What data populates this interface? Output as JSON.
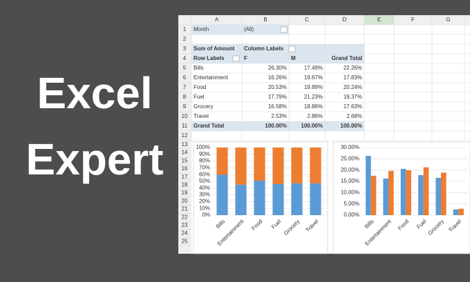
{
  "headline": [
    "Excel",
    "Expert"
  ],
  "sheet": {
    "columns": [
      "A",
      "B",
      "C",
      "D",
      "E",
      "F",
      "G"
    ],
    "row_numbers": [
      1,
      2,
      3,
      4,
      5,
      6,
      7,
      8,
      9,
      10,
      11,
      12,
      13,
      14,
      15,
      16,
      17,
      18,
      19,
      20,
      21,
      22,
      23,
      24,
      25
    ],
    "filter": {
      "label": "Month",
      "value": "(All)"
    },
    "pivot": {
      "value_label": "Sum of Amount",
      "column_labels": "Column Labels",
      "row_labels": "Row Labels",
      "headers": [
        "F",
        "M",
        "Grand Total"
      ],
      "rows": [
        [
          "Bills",
          "26.30%",
          "17.49%",
          "22.26%"
        ],
        [
          "Entertainment",
          "16.26%",
          "19.67%",
          "17.83%"
        ],
        [
          "Food",
          "20.53%",
          "19.89%",
          "20.24%"
        ],
        [
          "Fuel",
          "17.79%",
          "21.23%",
          "19.37%"
        ],
        [
          "Grocery",
          "16.58%",
          "18.86%",
          "17.63%"
        ],
        [
          "Travel",
          "2.53%",
          "2.86%",
          "2.68%"
        ]
      ],
      "total": [
        "Grand Total",
        "100.00%",
        "100.00%",
        "100.00%"
      ]
    }
  },
  "chart_data": [
    {
      "type": "bar",
      "stacked": true,
      "grid": true,
      "categories": [
        "Bills",
        "Entertainment",
        "Food",
        "Fuel",
        "Grocery",
        "Travel"
      ],
      "series": [
        {
          "color": "#5b9bd5",
          "values": [
            60,
            45,
            51,
            46,
            47,
            47
          ]
        },
        {
          "color": "#ed7d31",
          "values": [
            40,
            55,
            49,
            54,
            53,
            53
          ]
        }
      ],
      "ylim": [
        0,
        100
      ],
      "yticks": [
        {
          "value": 0,
          "label": "0%"
        },
        {
          "value": 10,
          "label": "10%"
        },
        {
          "value": 20,
          "label": "20%"
        },
        {
          "value": 30,
          "label": "30%"
        },
        {
          "value": 40,
          "label": "40%"
        },
        {
          "value": 50,
          "label": "50%"
        },
        {
          "value": 60,
          "label": "60%"
        },
        {
          "value": 70,
          "label": "70%"
        },
        {
          "value": 80,
          "label": "80%"
        },
        {
          "value": 90,
          "label": "90%"
        },
        {
          "value": 100,
          "label": "100%"
        }
      ]
    },
    {
      "type": "bar",
      "stacked": false,
      "grid": true,
      "categories": [
        "Bills",
        "Entertainment",
        "Food",
        "Fuel",
        "Grocery",
        "Travel"
      ],
      "series": [
        {
          "color": "#5b9bd5",
          "values": [
            26.3,
            16.26,
            20.53,
            17.79,
            16.58,
            2.53
          ]
        },
        {
          "color": "#ed7d31",
          "values": [
            17.49,
            19.67,
            19.89,
            21.23,
            18.86,
            2.86
          ]
        }
      ],
      "ylim": [
        0,
        30
      ],
      "yticks": [
        {
          "value": 0,
          "label": "0.00%"
        },
        {
          "value": 5,
          "label": "5.00%"
        },
        {
          "value": 10,
          "label": "10.00%"
        },
        {
          "value": 15,
          "label": "15.00%"
        },
        {
          "value": 20,
          "label": "20.00%"
        },
        {
          "value": 25,
          "label": "25.00%"
        },
        {
          "value": 30,
          "label": "30.00%"
        }
      ]
    }
  ]
}
